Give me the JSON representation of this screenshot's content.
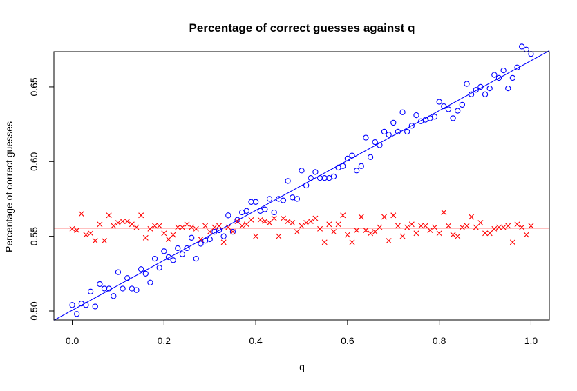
{
  "chart_data": {
    "type": "scatter",
    "title": "Percentage of correct guesses against q",
    "xlabel": "q",
    "ylabel": "Percentage of correct guesses",
    "xlim": [
      -0.04,
      1.04
    ],
    "ylim": [
      0.494,
      0.6735
    ],
    "x_ticks": [
      0.0,
      0.2,
      0.4,
      0.6,
      0.8,
      1.0
    ],
    "x_tick_labels": [
      "0.0",
      "0.2",
      "0.4",
      "0.6",
      "0.8",
      "1.0"
    ],
    "y_ticks": [
      0.5,
      0.55,
      0.6,
      0.65
    ],
    "y_tick_labels": [
      "0.50",
      "0.55",
      "0.60",
      "0.65"
    ],
    "grid": false,
    "legend": "none",
    "series": [
      {
        "marker": "circle",
        "color": "#0000ff",
        "x": [
          0.0,
          0.01,
          0.02,
          0.03,
          0.04,
          0.05,
          0.06,
          0.07,
          0.08,
          0.09,
          0.1,
          0.11,
          0.12,
          0.13,
          0.14,
          0.15,
          0.16,
          0.17,
          0.18,
          0.19,
          0.2,
          0.21,
          0.22,
          0.23,
          0.24,
          0.25,
          0.26,
          0.27,
          0.28,
          0.29,
          0.3,
          0.31,
          0.32,
          0.33,
          0.34,
          0.35,
          0.36,
          0.37,
          0.38,
          0.39,
          0.4,
          0.41,
          0.42,
          0.43,
          0.44,
          0.45,
          0.46,
          0.47,
          0.48,
          0.49,
          0.5,
          0.51,
          0.52,
          0.53,
          0.54,
          0.55,
          0.56,
          0.57,
          0.58,
          0.59,
          0.6,
          0.61,
          0.62,
          0.63,
          0.64,
          0.65,
          0.66,
          0.67,
          0.68,
          0.69,
          0.7,
          0.71,
          0.72,
          0.73,
          0.74,
          0.75,
          0.76,
          0.77,
          0.78,
          0.79,
          0.8,
          0.81,
          0.82,
          0.83,
          0.84,
          0.85,
          0.86,
          0.87,
          0.88,
          0.89,
          0.9,
          0.91,
          0.92,
          0.93,
          0.94,
          0.95,
          0.96,
          0.97,
          0.98,
          0.99,
          1.0
        ],
        "y": [
          0.504,
          0.498,
          0.505,
          0.504,
          0.513,
          0.503,
          0.518,
          0.515,
          0.515,
          0.51,
          0.526,
          0.515,
          0.522,
          0.515,
          0.514,
          0.528,
          0.525,
          0.519,
          0.535,
          0.529,
          0.54,
          0.536,
          0.534,
          0.542,
          0.538,
          0.542,
          0.549,
          0.535,
          0.545,
          0.547,
          0.548,
          0.553,
          0.554,
          0.55,
          0.564,
          0.553,
          0.561,
          0.566,
          0.567,
          0.573,
          0.573,
          0.567,
          0.568,
          0.575,
          0.566,
          0.575,
          0.574,
          0.587,
          0.576,
          0.575,
          0.594,
          0.584,
          0.589,
          0.593,
          0.589,
          0.589,
          0.589,
          0.59,
          0.596,
          0.597,
          0.602,
          0.604,
          0.594,
          0.597,
          0.616,
          0.603,
          0.613,
          0.611,
          0.62,
          0.618,
          0.626,
          0.62,
          0.633,
          0.62,
          0.624,
          0.631,
          0.627,
          0.628,
          0.629,
          0.63,
          0.64,
          0.637,
          0.635,
          0.629,
          0.634,
          0.638,
          0.652,
          0.645,
          0.648,
          0.65,
          0.645,
          0.649,
          0.658,
          0.656,
          0.661,
          0.649,
          0.656,
          0.663,
          0.677,
          0.675,
          0.672
        ]
      },
      {
        "marker": "cross",
        "color": "#ff0000",
        "x": [
          0.0,
          0.01,
          0.02,
          0.03,
          0.04,
          0.05,
          0.06,
          0.07,
          0.08,
          0.09,
          0.1,
          0.11,
          0.12,
          0.13,
          0.14,
          0.15,
          0.16,
          0.17,
          0.18,
          0.19,
          0.2,
          0.21,
          0.22,
          0.23,
          0.24,
          0.25,
          0.26,
          0.27,
          0.28,
          0.29,
          0.3,
          0.31,
          0.32,
          0.33,
          0.34,
          0.35,
          0.36,
          0.37,
          0.38,
          0.39,
          0.4,
          0.41,
          0.42,
          0.43,
          0.44,
          0.45,
          0.46,
          0.47,
          0.48,
          0.49,
          0.5,
          0.51,
          0.52,
          0.53,
          0.54,
          0.55,
          0.56,
          0.57,
          0.58,
          0.59,
          0.6,
          0.61,
          0.62,
          0.63,
          0.64,
          0.65,
          0.66,
          0.67,
          0.68,
          0.69,
          0.7,
          0.71,
          0.72,
          0.73,
          0.74,
          0.75,
          0.76,
          0.77,
          0.78,
          0.79,
          0.8,
          0.81,
          0.82,
          0.83,
          0.84,
          0.85,
          0.86,
          0.87,
          0.88,
          0.89,
          0.9,
          0.91,
          0.92,
          0.93,
          0.94,
          0.95,
          0.96,
          0.97,
          0.98,
          0.99,
          1.0
        ],
        "y": [
          0.555,
          0.554,
          0.565,
          0.551,
          0.552,
          0.547,
          0.558,
          0.547,
          0.564,
          0.557,
          0.559,
          0.56,
          0.56,
          0.558,
          0.556,
          0.564,
          0.549,
          0.555,
          0.557,
          0.557,
          0.552,
          0.548,
          0.551,
          0.556,
          0.556,
          0.558,
          0.556,
          0.555,
          0.548,
          0.557,
          0.553,
          0.556,
          0.557,
          0.546,
          0.556,
          0.553,
          0.56,
          0.557,
          0.558,
          0.561,
          0.55,
          0.561,
          0.56,
          0.559,
          0.562,
          0.55,
          0.562,
          0.56,
          0.559,
          0.553,
          0.557,
          0.559,
          0.56,
          0.562,
          0.555,
          0.546,
          0.558,
          0.553,
          0.558,
          0.564,
          0.551,
          0.546,
          0.554,
          0.563,
          0.554,
          0.552,
          0.553,
          0.556,
          0.563,
          0.547,
          0.564,
          0.557,
          0.55,
          0.556,
          0.558,
          0.552,
          0.557,
          0.557,
          0.554,
          0.556,
          0.552,
          0.566,
          0.557,
          0.551,
          0.55,
          0.556,
          0.557,
          0.563,
          0.556,
          0.559,
          0.552,
          0.552,
          0.555,
          0.556,
          0.556,
          0.557,
          0.546,
          0.558,
          0.556,
          0.551,
          0.557
        ]
      }
    ],
    "fit_lines": [
      {
        "color": "#0000ff",
        "intercept": 0.5005,
        "slope": 0.167
      },
      {
        "color": "#ff0000",
        "intercept": 0.5555,
        "slope": 0.0
      }
    ]
  }
}
